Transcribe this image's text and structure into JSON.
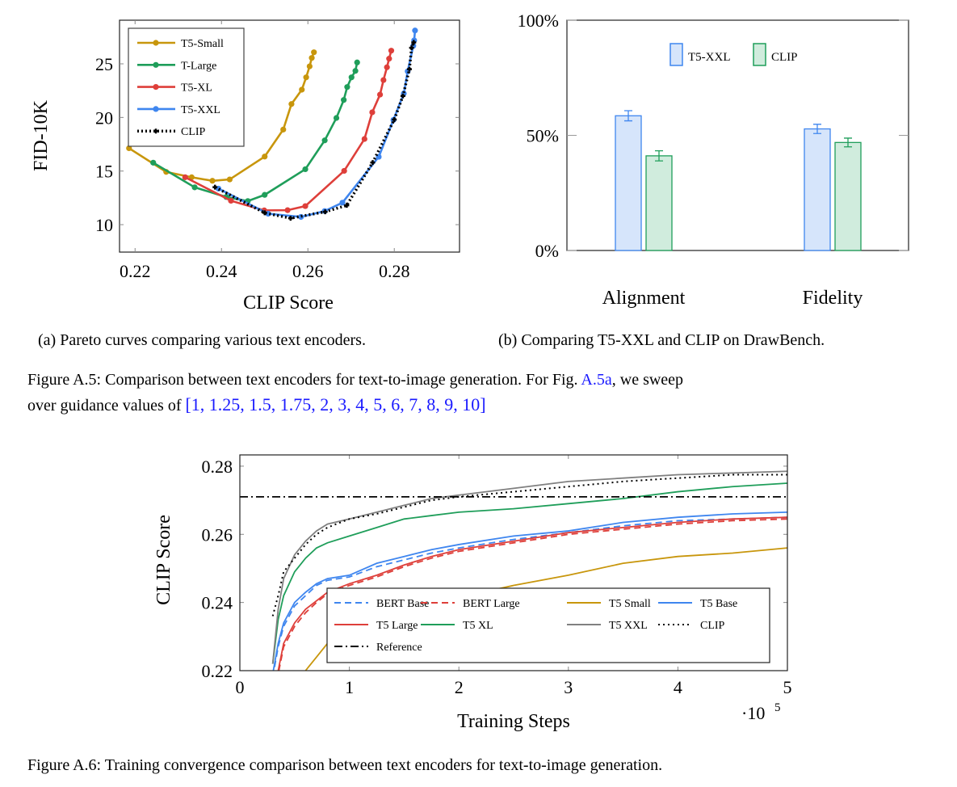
{
  "figure_a5": {
    "caption_label": "Figure A.5:",
    "caption_text": "Comparison between text encoders for text-to-image generation. For Fig.",
    "caption_link": "A.5a",
    "caption_text2": ", we sweep",
    "caption_line2": "over guidance values of",
    "caption_values": "[1, 1.25, 1.5, 1.75, 2, 3, 4, 5, 6, 7, 8, 9, 10]",
    "subcaption_a": "(a) Pareto curves comparing various text encoders.",
    "subcaption_b": "(b) Comparing T5-XXL and CLIP on DrawBench."
  },
  "figure_a6": {
    "caption": "Figure A.6: Training convergence comparison between text encoders for text-to-image generation."
  },
  "chart_data": [
    {
      "type": "line",
      "xlabel": "CLIP Score",
      "ylabel": "FID-10K",
      "xticks": [
        "0.22",
        "0.24",
        "0.26",
        "0.28"
      ],
      "yticks": [
        "10",
        "15",
        "20",
        "25"
      ],
      "xtick_values": [
        0.22,
        0.24,
        0.26,
        0.28
      ],
      "ytick_values": [
        10,
        15,
        20,
        25
      ],
      "xlim": [
        0.2164,
        0.2951
      ],
      "ylim": [
        7.44,
        29.07
      ],
      "legend_position": "top-left",
      "series": [
        {
          "name": "T5-Small",
          "color": "#c8960c",
          "style": "solid-marker",
          "x": [
            0.2186,
            0.2272,
            0.2331,
            0.2379,
            0.2419,
            0.25,
            0.2543,
            0.2562,
            0.2586,
            0.2596,
            0.2604,
            0.2609,
            0.2614
          ],
          "y": [
            17.13,
            14.92,
            14.42,
            14.09,
            14.22,
            16.35,
            18.87,
            21.25,
            22.59,
            23.74,
            24.77,
            25.55,
            26.08
          ]
        },
        {
          "name": "T-Large",
          "color": "#1f9e5a",
          "style": "solid-marker",
          "x": [
            0.2242,
            0.2338,
            0.2411,
            0.2461,
            0.25,
            0.2594,
            0.2639,
            0.2666,
            0.2683,
            0.2691,
            0.2701,
            0.271,
            0.2714
          ],
          "y": [
            15.78,
            13.48,
            12.58,
            12.2,
            12.78,
            15.17,
            17.86,
            19.95,
            21.63,
            22.84,
            23.74,
            24.34,
            25.13
          ]
        },
        {
          "name": "T5-XL",
          "color": "#de3f3a",
          "style": "solid-marker",
          "x": [
            0.2316,
            0.2422,
            0.2499,
            0.2553,
            0.2594,
            0.2684,
            0.2731,
            0.2749,
            0.2767,
            0.2775,
            0.2783,
            0.2788,
            0.2793
          ],
          "y": [
            14.42,
            12.23,
            11.33,
            11.35,
            11.73,
            15.02,
            17.99,
            20.48,
            22.13,
            23.49,
            24.68,
            25.48,
            26.23
          ]
        },
        {
          "name": "T5-XXL",
          "color": "#3f86ef",
          "style": "solid-marker",
          "x": [
            0.2393,
            0.2508,
            0.2584,
            0.2639,
            0.268,
            0.2764,
            0.2798,
            0.2822,
            0.2831,
            0.2844,
            0.2846,
            0.2848
          ],
          "y": [
            13.36,
            11.02,
            10.72,
            11.27,
            12.05,
            16.33,
            19.77,
            22.23,
            24.3,
            26.68,
            27.19,
            28.11
          ]
        },
        {
          "name": "CLIP",
          "color": "#000000",
          "style": "dotted-plus",
          "x": [
            0.2385,
            0.25,
            0.256,
            0.264,
            0.269,
            0.275,
            0.28,
            0.282,
            0.2835,
            0.284,
            0.2845
          ],
          "y": [
            13.5,
            11.1,
            10.6,
            11.2,
            11.8,
            15.8,
            19.8,
            22.0,
            24.5,
            26.5,
            27.0
          ]
        }
      ]
    },
    {
      "type": "bar",
      "xlabel": "",
      "ylabel": "",
      "categories": [
        "Alignment",
        "Fidelity"
      ],
      "yticks": [
        "0%",
        "50%",
        "100%"
      ],
      "ytick_values": [
        0,
        50,
        100
      ],
      "ylim": [
        0,
        100
      ],
      "legend_position": "top-center",
      "series": [
        {
          "name": "T5-XXL",
          "color": "#3f86ef",
          "fill": "#d6e5fb",
          "values": [
            58.5,
            52.8
          ],
          "errors": [
            2.2,
            2.0
          ]
        },
        {
          "name": "CLIP",
          "color": "#1f9e5a",
          "fill": "#d0ecdd",
          "values": [
            41.1,
            46.9
          ],
          "errors": [
            2.2,
            1.9
          ]
        }
      ]
    },
    {
      "type": "line",
      "xlabel": "Training Steps",
      "ylabel": "CLIP Score",
      "x_multiplier": "·10",
      "x_multiplier_exp": "5",
      "xticks": [
        "0",
        "1",
        "2",
        "3",
        "4",
        "5"
      ],
      "xtick_values": [
        0,
        1,
        2,
        3,
        4,
        5
      ],
      "yticks": [
        "0.22",
        "0.24",
        "0.26",
        "0.28"
      ],
      "ytick_values": [
        0.22,
        0.24,
        0.26,
        0.28
      ],
      "xlim": [
        0,
        5
      ],
      "ylim": [
        0.22,
        0.2833
      ],
      "legend_position": "bottom-right",
      "x": [
        0.3,
        0.35,
        0.4,
        0.5,
        0.6,
        0.7,
        0.8,
        1,
        1.25,
        1.5,
        1.75,
        2,
        2.5,
        3,
        3.5,
        4,
        4.5,
        5
      ],
      "series": [
        {
          "name": "BERT Base",
          "color": "#3f86ef",
          "dash": "8,5",
          "values": [
            0.218,
            0.227,
            0.233,
            0.239,
            0.242,
            0.245,
            0.2465,
            0.2475,
            0.2505,
            0.2525,
            0.2545,
            0.256,
            0.2585,
            0.2605,
            0.2625,
            0.264,
            0.2645,
            0.265
          ]
        },
        {
          "name": "BERT Large",
          "color": "#de3f3a",
          "dash": "8,5",
          "values": [
            0.214,
            0.219,
            0.227,
            0.233,
            0.237,
            0.24,
            0.2425,
            0.245,
            0.2475,
            0.2505,
            0.253,
            0.255,
            0.2575,
            0.26,
            0.2615,
            0.263,
            0.264,
            0.2645
          ]
        },
        {
          "name": "T5 Small",
          "color": "#c8960c",
          "dash": "",
          "values": [
            null,
            null,
            null,
            0.215,
            0.22,
            0.224,
            0.228,
            0.232,
            0.236,
            0.238,
            0.24,
            0.2415,
            0.245,
            0.248,
            0.2515,
            0.2535,
            0.2545,
            0.256
          ]
        },
        {
          "name": "T5 Base",
          "color": "#3f86ef",
          "dash": "",
          "values": [
            0.219,
            0.228,
            0.234,
            0.24,
            0.243,
            0.2455,
            0.247,
            0.248,
            0.2515,
            0.2535,
            0.2555,
            0.257,
            0.2595,
            0.261,
            0.2635,
            0.265,
            0.266,
            0.2665
          ]
        },
        {
          "name": "T5 Large",
          "color": "#de3f3a",
          "dash": "",
          "values": [
            0.215,
            0.22,
            0.228,
            0.234,
            0.238,
            0.2405,
            0.243,
            0.2455,
            0.248,
            0.251,
            0.2535,
            0.2555,
            0.258,
            0.2605,
            0.262,
            0.2635,
            0.2645,
            0.265
          ]
        },
        {
          "name": "T5 XL",
          "color": "#1f9e5a",
          "dash": "",
          "values": [
            0.222,
            0.235,
            0.242,
            0.249,
            0.253,
            0.256,
            0.2575,
            0.2595,
            0.262,
            0.2645,
            0.2655,
            0.2665,
            0.2675,
            0.269,
            0.2705,
            0.2725,
            0.274,
            0.275
          ]
        },
        {
          "name": "T5 XXL",
          "color": "#808080",
          "dash": "",
          "values": [
            0.222,
            0.238,
            0.247,
            0.254,
            0.258,
            0.261,
            0.263,
            0.2645,
            0.2665,
            0.2685,
            0.2705,
            0.2715,
            0.2735,
            0.2755,
            0.2765,
            0.2775,
            0.278,
            0.2785
          ]
        },
        {
          "name": "CLIP",
          "color": "#000000",
          "dash": "2,4",
          "values": [
            0.236,
            0.242,
            0.249,
            0.253,
            0.257,
            0.26,
            0.262,
            0.2645,
            0.266,
            0.268,
            0.27,
            0.271,
            0.2725,
            0.274,
            0.2755,
            0.2765,
            0.2775,
            0.2775
          ]
        },
        {
          "name": "Reference",
          "color": "#000000",
          "dash": "10,4,2,4",
          "values": [
            0.271,
            0.271,
            0.271,
            0.271,
            0.271,
            0.271,
            0.271,
            0.271,
            0.271,
            0.271,
            0.271,
            0.271,
            0.271,
            0.271,
            0.271,
            0.271,
            0.271,
            0.271
          ],
          "full_width": true
        }
      ]
    }
  ]
}
